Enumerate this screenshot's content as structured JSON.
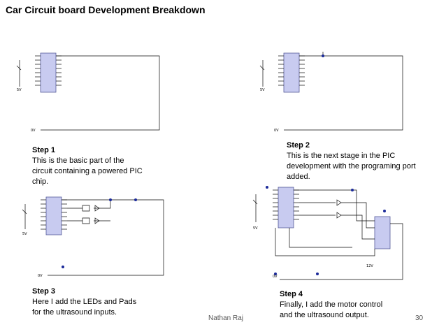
{
  "slide": {
    "title": "Car Circuit board Development Breakdown",
    "author": "Nathan Raj",
    "page_number": "30"
  },
  "steps": [
    {
      "heading": "Step 1",
      "text": "This is the basic part of the circuit containing a powered PIC chip."
    },
    {
      "heading": "Step 2",
      "text": "This is the next stage in the PIC development with the programing port added."
    },
    {
      "heading": "Step 3",
      "text": "Here I add the LEDs and Pads for the ultrasound inputs."
    },
    {
      "heading": "Step 4",
      "text": "Finally, I add the motor control and the ultrasound output."
    }
  ],
  "circuit_labels": {
    "supply_5v": "5V",
    "ground_0v": "0V",
    "supply_12v": "12V"
  }
}
